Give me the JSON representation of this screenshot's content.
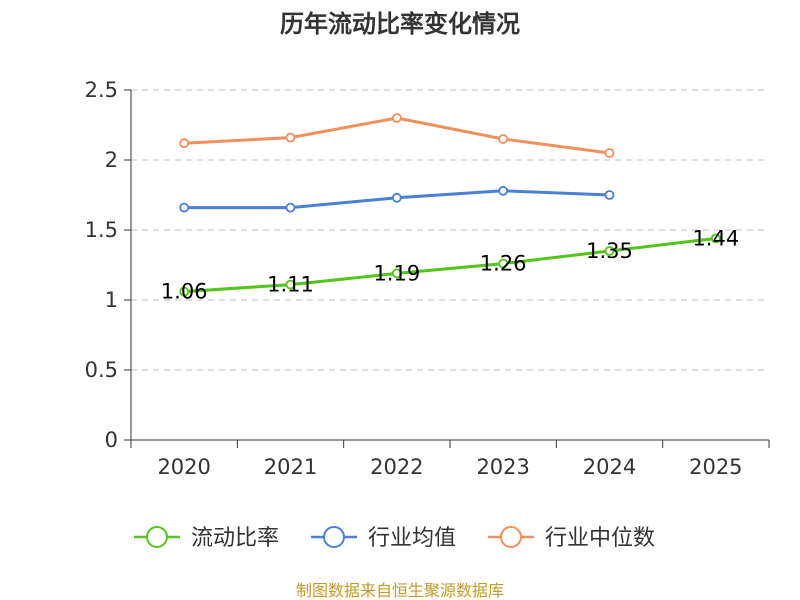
{
  "chart_data": {
    "type": "line",
    "title": "历年流动比率变化情况",
    "categories": [
      "2020",
      "2021",
      "2022",
      "2023",
      "2024",
      "2025"
    ],
    "ylim": [
      0,
      2.5
    ],
    "yticks": [
      0,
      0.5,
      1,
      1.5,
      2,
      2.5
    ],
    "ytick_labels": [
      "0",
      "0.5",
      "1",
      "1.5",
      "2",
      "2.5"
    ],
    "grid": true,
    "legend_position": "bottom",
    "series": [
      {
        "name": "流动比率",
        "color": "#52c41a",
        "values": [
          1.06,
          1.11,
          1.19,
          1.26,
          1.35,
          1.44
        ],
        "labels": [
          "1.06",
          "1.11",
          "1.19",
          "1.26",
          "1.35",
          "1.44"
        ]
      },
      {
        "name": "行业均值",
        "color": "#4a7fd6",
        "values": [
          1.66,
          1.66,
          1.73,
          1.78,
          1.75,
          null
        ]
      },
      {
        "name": "行业中位数",
        "color": "#f28f5c",
        "values": [
          2.12,
          2.16,
          2.3,
          2.15,
          2.05,
          null
        ]
      }
    ],
    "source": "制图数据来自恒生聚源数据库"
  }
}
